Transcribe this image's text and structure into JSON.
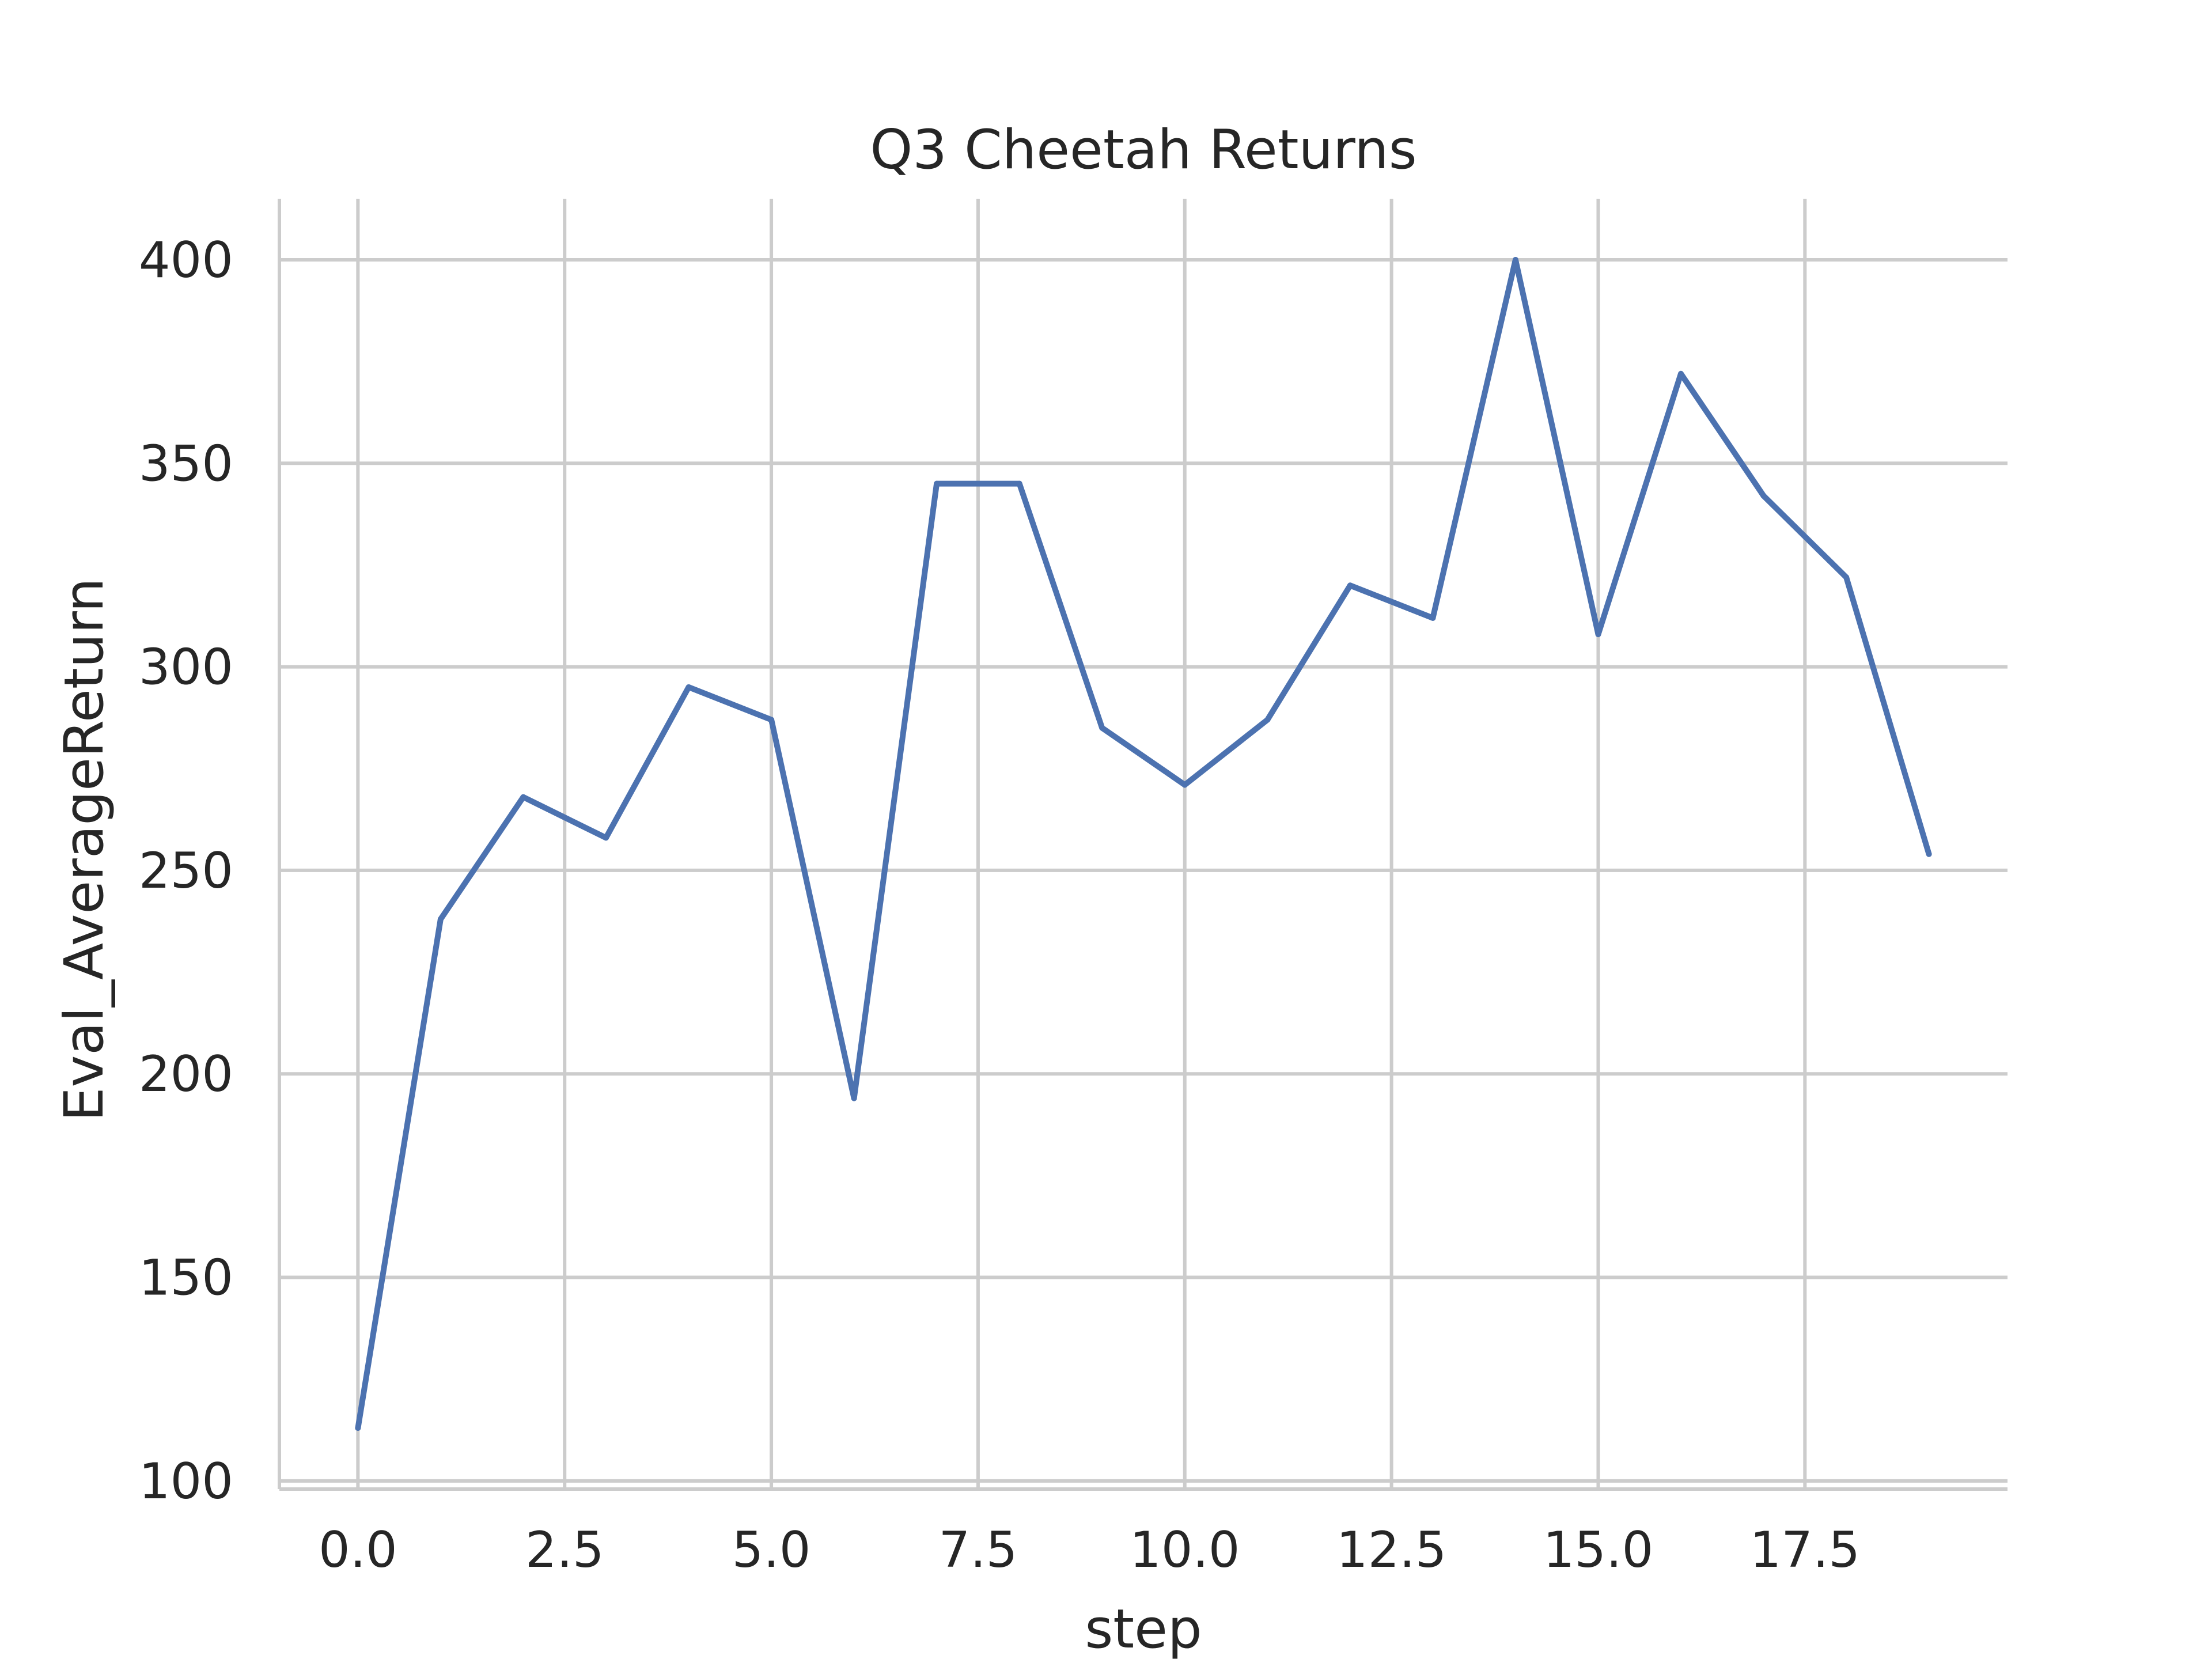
{
  "chart_data": {
    "type": "line",
    "title": "Q3 Cheetah Returns",
    "xlabel": "step",
    "ylabel": "Eval_AverageReturn",
    "xlim": [
      -0.95,
      19.95
    ],
    "ylim": [
      98,
      415
    ],
    "x_ticks": [
      "0.0",
      "2.5",
      "5.0",
      "7.5",
      "10.0",
      "12.5",
      "15.0",
      "17.5"
    ],
    "x_tick_values": [
      0,
      2.5,
      5,
      7.5,
      10,
      12.5,
      15,
      17.5
    ],
    "y_ticks": [
      "100",
      "150",
      "200",
      "250",
      "300",
      "350",
      "400"
    ],
    "y_tick_values": [
      100,
      150,
      200,
      250,
      300,
      350,
      400
    ],
    "grid": true,
    "series": [
      {
        "color": "#4c72b0",
        "x": [
          0,
          1,
          2,
          3,
          4,
          5,
          6,
          7,
          8,
          9,
          10,
          11,
          12,
          13,
          14,
          15,
          16,
          17,
          18,
          19
        ],
        "values": [
          113,
          238,
          268,
          258,
          295,
          287,
          194,
          345,
          345,
          285,
          271,
          287,
          320,
          312,
          400,
          308,
          372,
          342,
          322,
          254
        ]
      }
    ]
  }
}
